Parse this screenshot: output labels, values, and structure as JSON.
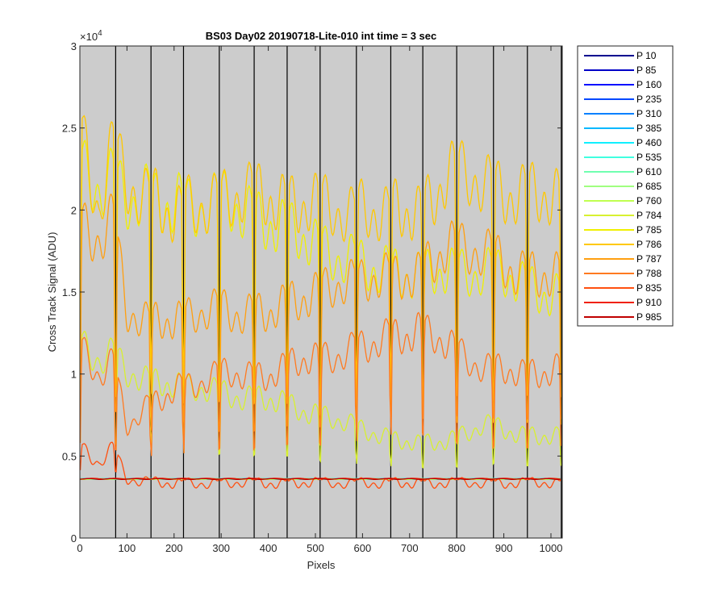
{
  "chart_data": {
    "type": "line",
    "title": "BS03 Day02 20190718-Lite-010 int time = 3 sec",
    "xlabel": "Pixels",
    "ylabel": "Cross Track Signal (ADU)",
    "y_exponent_label": "×10",
    "y_exponent_power": "4",
    "xlim": [
      0,
      1024
    ],
    "ylim": [
      0,
      30000
    ],
    "xticks": [
      0,
      100,
      200,
      300,
      400,
      500,
      600,
      700,
      800,
      900,
      1000
    ],
    "yticks": [
      0,
      5000,
      10000,
      15000,
      20000,
      25000,
      30000
    ],
    "ytick_labels": [
      "0",
      "0.5",
      "1",
      "1.5",
      "2",
      "2.5",
      "3"
    ],
    "grid": false,
    "legend_position": "outside-right",
    "plot_background": "#cccccc",
    "segment_boundaries": [
      76,
      151,
      220,
      296,
      370,
      440,
      510,
      587,
      660,
      728,
      800,
      878,
      950,
      1022
    ],
    "series": [
      {
        "name": "P 10",
        "color": "#00008f",
        "kind": "baseline",
        "level": 3600
      },
      {
        "name": "P 85",
        "color": "#0000c8",
        "kind": "baseline",
        "level": 3600
      },
      {
        "name": "P 160",
        "color": "#0010ff",
        "kind": "baseline",
        "level": 3600
      },
      {
        "name": "P 235",
        "color": "#0048ff",
        "kind": "baseline",
        "level": 3600
      },
      {
        "name": "P 310",
        "color": "#0080ff",
        "kind": "baseline",
        "level": 3600
      },
      {
        "name": "P 385",
        "color": "#00b8ff",
        "kind": "baseline",
        "level": 3600
      },
      {
        "name": "P 460",
        "color": "#10f0ff",
        "kind": "baseline",
        "level": 3600
      },
      {
        "name": "P 535",
        "color": "#40ffe0",
        "kind": "baseline",
        "level": 3600
      },
      {
        "name": "P 610",
        "color": "#70ffb0",
        "kind": "baseline",
        "level": 3600
      },
      {
        "name": "P 685",
        "color": "#a0ff80",
        "kind": "baseline",
        "level": 3600
      },
      {
        "name": "P 760",
        "color": "#c0ff50",
        "kind": "baseline",
        "level": 3600
      },
      {
        "name": "P 784",
        "color": "#d8f030",
        "kind": "profile",
        "x": [
          5,
          40,
          70,
          100,
          150,
          200,
          300,
          400,
          480,
          560,
          640,
          720,
          780,
          860,
          940,
          1015
        ],
        "y": [
          13000,
          12200,
          12500,
          11000,
          10500,
          10200,
          9800,
          9300,
          8600,
          7800,
          6800,
          6300,
          6600,
          7600,
          7000,
          6800
        ]
      },
      {
        "name": "P 785",
        "color": "#f0f000",
        "kind": "profile",
        "x": [
          5,
          40,
          70,
          100,
          150,
          200,
          300,
          400,
          480,
          560,
          640,
          720,
          780,
          860,
          940,
          1015
        ],
        "y": [
          24500,
          23500,
          24500,
          23000,
          23000,
          22500,
          22500,
          21500,
          20000,
          19000,
          18200,
          17800,
          17800,
          18200,
          17000,
          16500
        ]
      },
      {
        "name": "P 786",
        "color": "#ffc800",
        "kind": "profile",
        "x": [
          5,
          40,
          70,
          100,
          150,
          200,
          300,
          400,
          480,
          560,
          640,
          720,
          780,
          860,
          940,
          1015
        ],
        "y": [
          27000,
          22000,
          26000,
          24000,
          23000,
          22000,
          23000,
          23000,
          22500,
          22000,
          22000,
          22000,
          24500,
          24000,
          23000,
          23000
        ]
      },
      {
        "name": "P 787",
        "color": "#ff9f10",
        "kind": "profile",
        "x": [
          5,
          40,
          70,
          100,
          150,
          200,
          300,
          400,
          480,
          560,
          640,
          720,
          780,
          860,
          940,
          1015
        ],
        "y": [
          21000,
          20500,
          21500,
          15000,
          14500,
          14500,
          15500,
          15000,
          16500,
          17000,
          17500,
          17500,
          20000,
          19000,
          18000,
          17500
        ]
      },
      {
        "name": "P 788",
        "color": "#ff7a20",
        "kind": "profile",
        "x": [
          5,
          40,
          70,
          100,
          150,
          200,
          300,
          400,
          480,
          560,
          640,
          720,
          780,
          860,
          940,
          1015
        ],
        "y": [
          12500,
          11000,
          12000,
          7600,
          9000,
          10000,
          11000,
          11000,
          12000,
          12500,
          13500,
          14000,
          13000,
          11500,
          11000,
          11500
        ]
      },
      {
        "name": "P 835",
        "color": "#ff5010",
        "kind": "profile",
        "x": [
          5,
          40,
          70,
          100,
          150,
          200,
          300,
          400,
          480,
          560,
          640,
          720,
          780,
          860,
          940,
          1015
        ],
        "y": [
          6000,
          5000,
          6000,
          4000,
          3800,
          3700,
          3700,
          3700,
          3700,
          3700,
          3700,
          3700,
          3700,
          3700,
          3700,
          3700
        ]
      },
      {
        "name": "P 910",
        "color": "#f02000",
        "kind": "baseline",
        "level": 3620
      },
      {
        "name": "P 985",
        "color": "#c00000",
        "kind": "baseline",
        "level": 3600
      }
    ]
  }
}
